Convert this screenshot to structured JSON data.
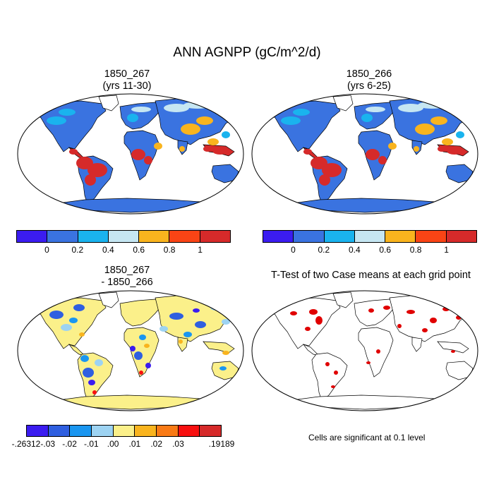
{
  "main_title": "ANN AGNPP (gC/m^2/d)",
  "panels": {
    "p1": {
      "title_line1": "1850_267",
      "title_line2": "(yrs 11-30)"
    },
    "p2": {
      "title_line1": "1850_266",
      "title_line2": "(yrs 6-25)"
    },
    "p3": {
      "title_line1": "1850_267",
      "title_line2": "- 1850_266"
    },
    "p4": {
      "title": "T-Test of two Case means at each grid point"
    }
  },
  "colorbar_abs": {
    "colors": [
      "#3b1cf0",
      "#3a73e0",
      "#1ab3ee",
      "#c6e6f2",
      "#f9b41e",
      "#f94415",
      "#d62a2a"
    ],
    "tick_labels": [
      "0",
      "0.2",
      "0.4",
      "0.6",
      "0.8",
      "1"
    ]
  },
  "colorbar_diff": {
    "colors": [
      "#3b1cf0",
      "#2f5fe0",
      "#1a96f0",
      "#9dd3f2",
      "#fbf08a",
      "#f9b41e",
      "#f97a15",
      "#f81010",
      "#d62a2a"
    ],
    "tick_labels": [
      "-.26312",
      "-.03",
      "-.02",
      "-.01",
      ".00",
      ".01",
      ".02",
      ".03",
      ".19189"
    ]
  },
  "significance_note": "Cells are significant at 0.1 level",
  "map_colors": {
    "ocean": "#ffffff",
    "coast": "#000000",
    "low": "#3a73e0",
    "mid": "#1ab3ee",
    "light": "#c6e6f2",
    "orange": "#f9b41e",
    "red": "#d62a2a",
    "diff_neutral": "#fbf08a",
    "signif": "#e00000"
  }
}
